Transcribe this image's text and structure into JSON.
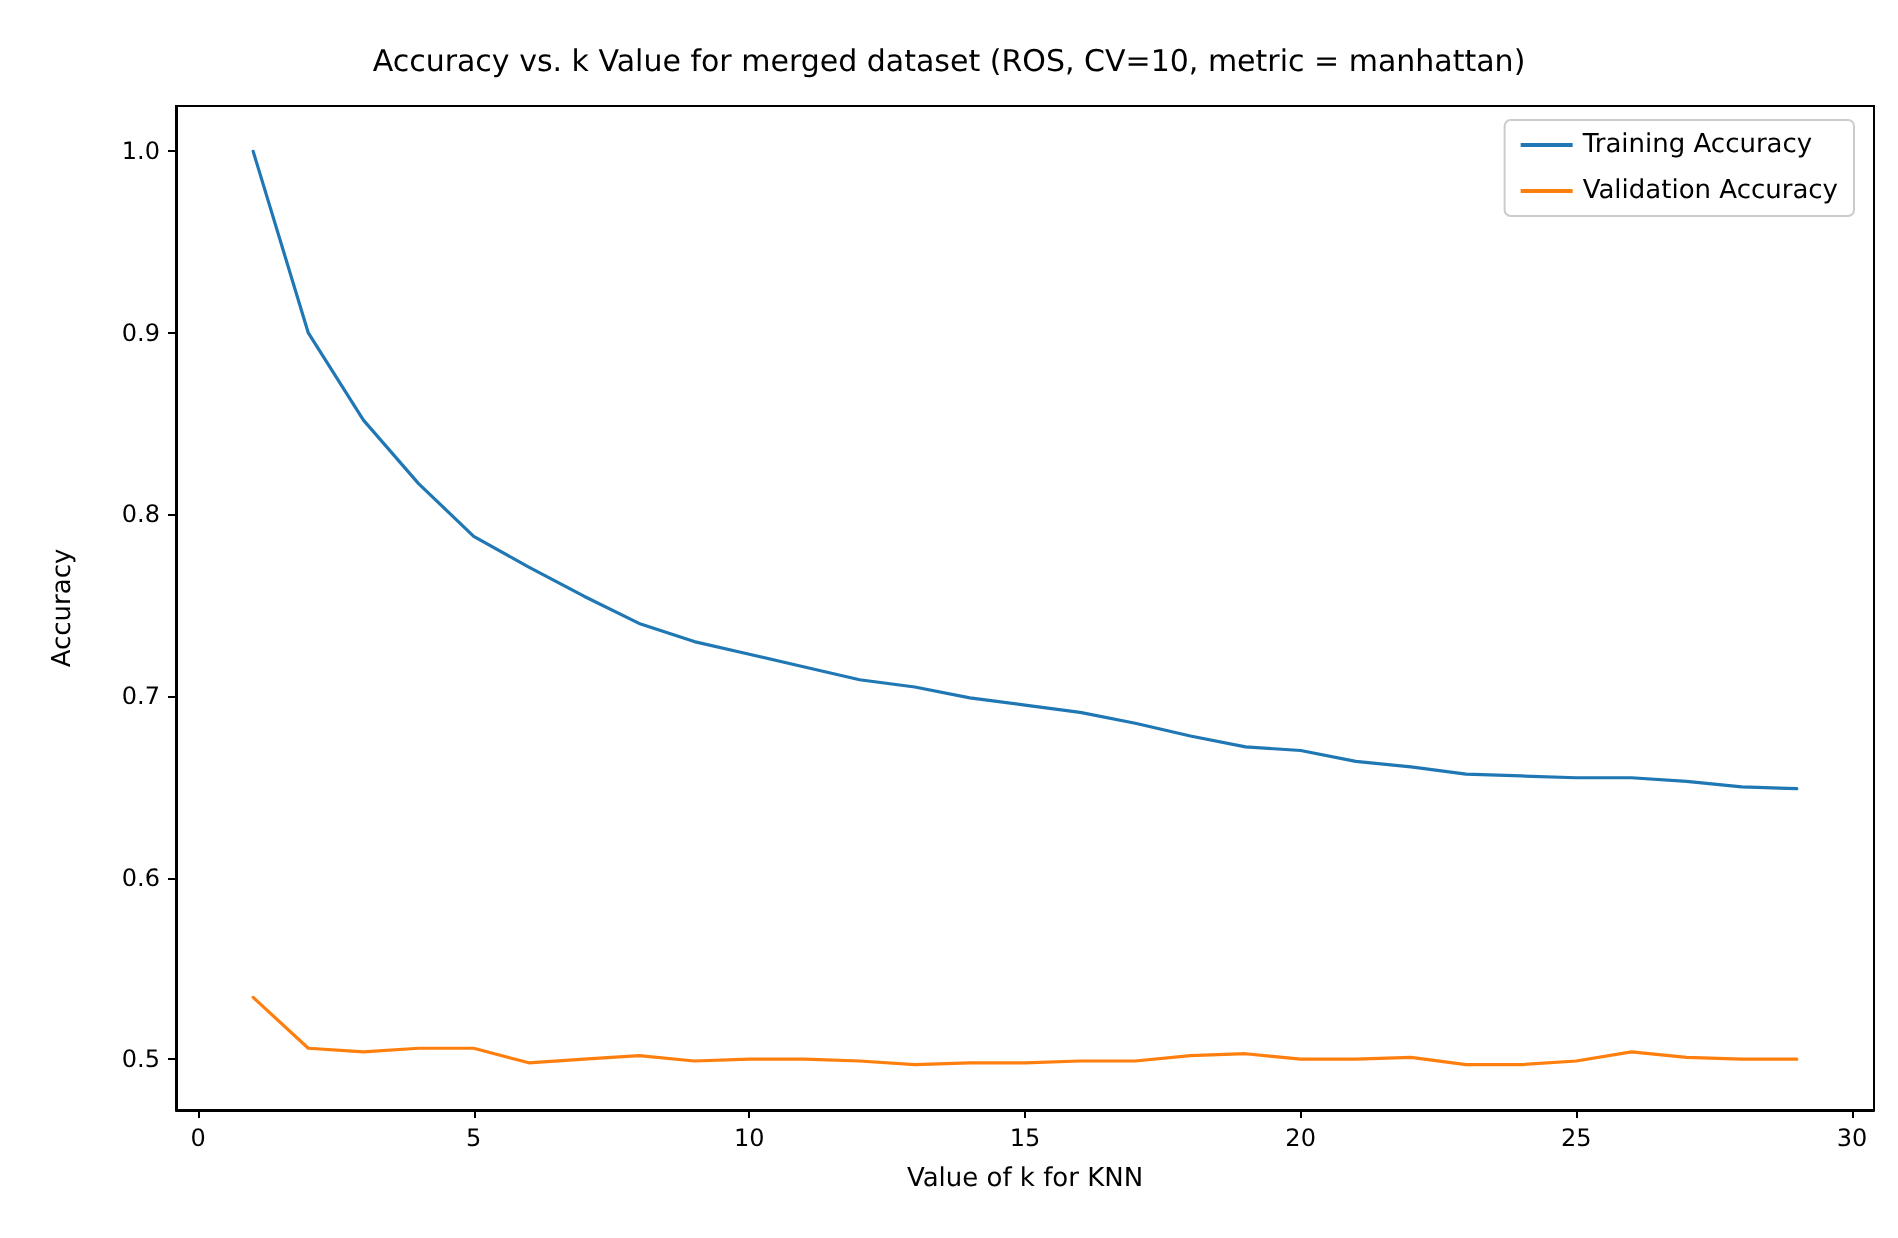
{
  "chart_data": {
    "type": "line",
    "title": "Accuracy vs. k Value for merged dataset (ROS, CV=10, metric = manhattan)",
    "xlabel": "Value of k for KNN",
    "ylabel": "Accuracy",
    "x": [
      1,
      2,
      3,
      4,
      5,
      6,
      7,
      8,
      9,
      10,
      11,
      12,
      13,
      14,
      15,
      16,
      17,
      18,
      19,
      20,
      21,
      22,
      23,
      24,
      25,
      26,
      27,
      28,
      29
    ],
    "series": [
      {
        "name": "Training Accuracy",
        "color": "#1f77b4",
        "values": [
          1.0,
          0.9,
          0.852,
          0.817,
          0.788,
          0.771,
          0.755,
          0.74,
          0.73,
          0.723,
          0.716,
          0.709,
          0.705,
          0.699,
          0.695,
          0.691,
          0.685,
          0.678,
          0.672,
          0.67,
          0.664,
          0.661,
          0.657,
          0.656,
          0.655,
          0.655,
          0.653,
          0.65,
          0.649
        ]
      },
      {
        "name": "Validation Accuracy",
        "color": "#ff7f0e",
        "values": [
          0.534,
          0.506,
          0.504,
          0.506,
          0.506,
          0.498,
          0.5,
          0.502,
          0.499,
          0.5,
          0.5,
          0.499,
          0.497,
          0.498,
          0.498,
          0.499,
          0.499,
          0.502,
          0.503,
          0.5,
          0.5,
          0.501,
          0.497,
          0.497,
          0.499,
          0.504,
          0.501,
          0.5,
          0.5
        ]
      }
    ],
    "xlim": [
      -0.4,
      30.4
    ],
    "xticks": [
      0,
      5,
      10,
      15,
      20,
      25,
      30
    ],
    "ylim": [
      0.472,
      1.025
    ],
    "yticks": [
      0.5,
      0.6,
      0.7,
      0.8,
      0.9,
      {
        "value": 1,
        "label": "1.0"
      }
    ],
    "grid": false,
    "legend": "top right",
    "marker": "none",
    "line_style": "solid"
  }
}
